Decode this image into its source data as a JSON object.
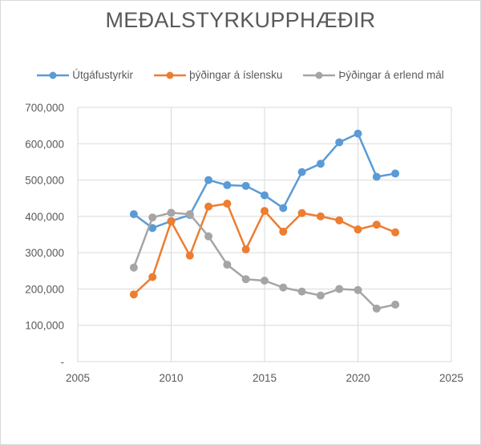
{
  "chart_data": {
    "type": "line",
    "title": "MEÐALSTYRKUPPHÆÐIR",
    "xlabel": "",
    "ylabel": "",
    "x": [
      2008,
      2009,
      2010,
      2011,
      2012,
      2013,
      2014,
      2015,
      2016,
      2017,
      2018,
      2019,
      2020,
      2021,
      2022
    ],
    "xlim": [
      2005,
      2025
    ],
    "ylim": [
      0,
      700000
    ],
    "x_ticks": [
      "2005",
      "2010",
      "2015",
      "2020",
      "2025"
    ],
    "y_ticks": [
      "-",
      "100,000",
      "200,000",
      "300,000",
      "400,000",
      "500,000",
      "600,000",
      "700,000"
    ],
    "grid": true,
    "legend_position": "top",
    "series": [
      {
        "name": "Útgáfustyrkir",
        "color": "#5b9bd5",
        "values": [
          406000,
          368000,
          387000,
          404000,
          500000,
          486000,
          484000,
          458000,
          423000,
          522000,
          545000,
          604000,
          628000,
          509000,
          518000
        ]
      },
      {
        "name": "þýðingar á íslensku",
        "color": "#ed7d31",
        "values": [
          185000,
          233000,
          386000,
          292000,
          427000,
          435000,
          309000,
          415000,
          358000,
          409000,
          400000,
          389000,
          364000,
          377000,
          356000
        ]
      },
      {
        "name": "Þýðingar á erlend mál",
        "color": "#a5a5a5",
        "values": [
          259000,
          397000,
          410000,
          406000,
          345000,
          267000,
          227000,
          223000,
          204000,
          193000,
          182000,
          200000,
          197000,
          146000,
          157000
        ]
      }
    ]
  },
  "legend": {
    "items": [
      {
        "label": "Útgáfustyrkir",
        "color": "#5b9bd5"
      },
      {
        "label": "þýðingar á íslensku",
        "color": "#ed7d31"
      },
      {
        "label": "Þýðingar á erlend mál",
        "color": "#a5a5a5"
      }
    ]
  }
}
